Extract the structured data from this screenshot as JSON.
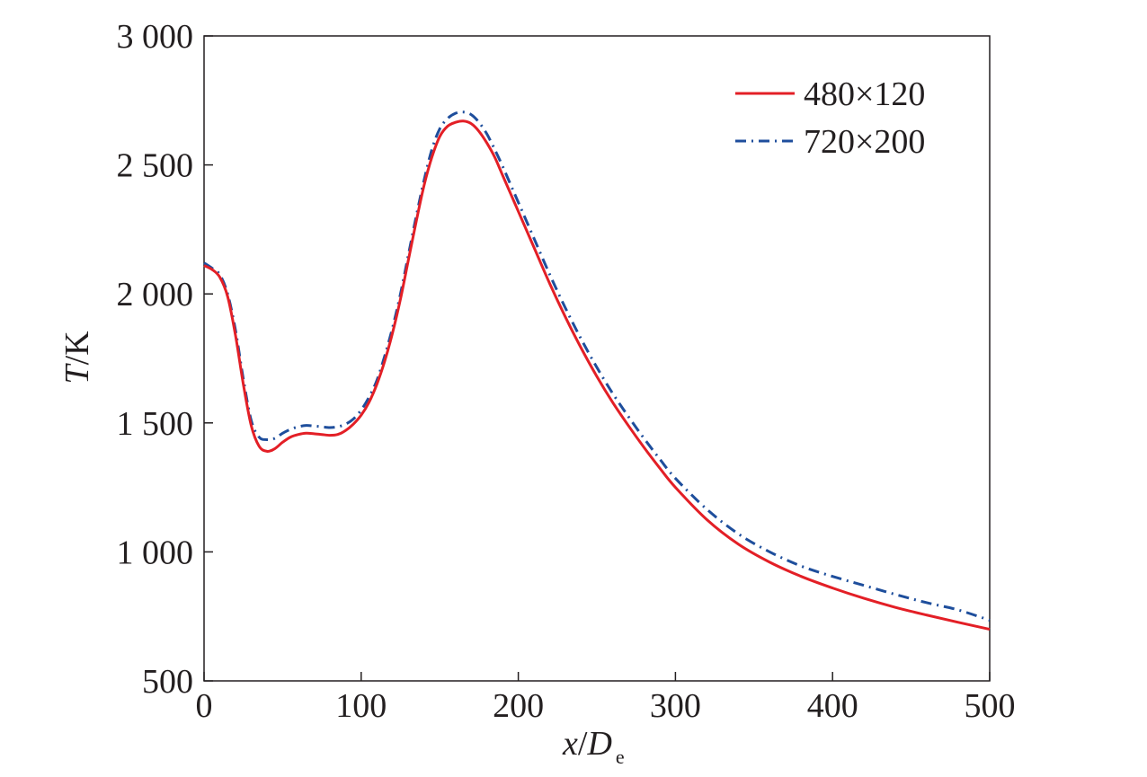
{
  "chart_data": {
    "type": "line",
    "xlabel": {
      "var": "x",
      "sep": "/",
      "den": "D",
      "sub": "e"
    },
    "ylabel": {
      "var": "T",
      "unit": "/K"
    },
    "xlim": [
      0,
      500
    ],
    "ylim": [
      500,
      3000
    ],
    "xticks": [
      0,
      100,
      200,
      300,
      400,
      500
    ],
    "xtick_labels": [
      "0",
      "100",
      "200",
      "300",
      "400",
      "500"
    ],
    "yticks": [
      500,
      1000,
      1500,
      2000,
      2500,
      3000
    ],
    "ytick_labels": [
      "500",
      "1 000",
      "1 500",
      "2 000",
      "2 500",
      "3 000"
    ],
    "grid": false,
    "legend_position": "top-right",
    "series": [
      {
        "name": "480×120",
        "color": "#e31f26",
        "style": "solid",
        "x": [
          0,
          5,
          10,
          15,
          20,
          25,
          30,
          35,
          40,
          45,
          50,
          55,
          60,
          65,
          70,
          75,
          80,
          85,
          90,
          95,
          100,
          105,
          110,
          115,
          120,
          125,
          130,
          135,
          140,
          145,
          150,
          155,
          160,
          165,
          170,
          175,
          180,
          185,
          190,
          195,
          200,
          210,
          220,
          230,
          240,
          250,
          260,
          270,
          280,
          290,
          300,
          320,
          340,
          360,
          380,
          400,
          420,
          440,
          460,
          480,
          500
        ],
        "y": [
          2110,
          2095,
          2065,
          1990,
          1840,
          1650,
          1490,
          1410,
          1390,
          1400,
          1425,
          1445,
          1455,
          1460,
          1458,
          1455,
          1452,
          1455,
          1470,
          1495,
          1530,
          1580,
          1650,
          1740,
          1850,
          1980,
          2130,
          2280,
          2420,
          2530,
          2610,
          2650,
          2665,
          2670,
          2660,
          2630,
          2585,
          2530,
          2460,
          2390,
          2320,
          2180,
          2040,
          1910,
          1790,
          1680,
          1580,
          1490,
          1405,
          1325,
          1250,
          1125,
          1030,
          960,
          905,
          860,
          820,
          785,
          755,
          727,
          700
        ]
      },
      {
        "name": "720×200",
        "color": "#1e4e9c",
        "style": "dashdot",
        "x": [
          0,
          5,
          10,
          15,
          20,
          25,
          30,
          35,
          40,
          45,
          50,
          55,
          60,
          65,
          70,
          75,
          80,
          85,
          90,
          95,
          100,
          105,
          110,
          115,
          120,
          125,
          130,
          135,
          140,
          145,
          150,
          155,
          160,
          165,
          170,
          175,
          180,
          185,
          190,
          195,
          200,
          210,
          220,
          230,
          240,
          250,
          260,
          270,
          280,
          290,
          300,
          320,
          340,
          360,
          380,
          400,
          420,
          440,
          460,
          480,
          500
        ],
        "y": [
          2120,
          2100,
          2075,
          2000,
          1860,
          1670,
          1510,
          1445,
          1435,
          1440,
          1460,
          1475,
          1485,
          1490,
          1488,
          1485,
          1482,
          1485,
          1495,
          1515,
          1550,
          1600,
          1665,
          1760,
          1870,
          2000,
          2150,
          2300,
          2440,
          2560,
          2640,
          2680,
          2700,
          2705,
          2695,
          2665,
          2620,
          2560,
          2495,
          2425,
          2355,
          2215,
          2075,
          1945,
          1825,
          1715,
          1615,
          1525,
          1440,
          1360,
          1285,
          1165,
          1070,
          1000,
          945,
          905,
          870,
          835,
          803,
          775,
          735
        ]
      }
    ]
  }
}
